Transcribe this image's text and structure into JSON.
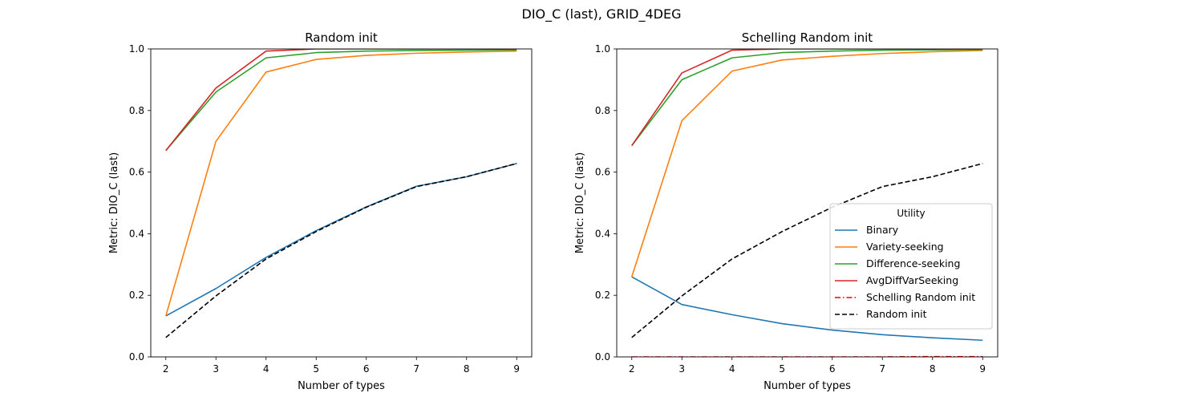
{
  "figure": {
    "suptitle": "DIO_C (last), GRID_4DEG"
  },
  "chart_data": [
    {
      "type": "line",
      "title": "Random init",
      "xlabel": "Number of types",
      "ylabel": "Metric: DIO_C (last)",
      "x": [
        2,
        3,
        4,
        5,
        6,
        7,
        8,
        9
      ],
      "xticks": [
        "2",
        "3",
        "4",
        "5",
        "6",
        "7",
        "8",
        "9"
      ],
      "yticks": [
        "0.0",
        "0.2",
        "0.4",
        "0.6",
        "0.8",
        "1.0"
      ],
      "xlim": [
        1.7,
        9.3
      ],
      "ylim": [
        0,
        1.0
      ],
      "grid": false,
      "legend": null,
      "series": [
        {
          "name": "Binary",
          "color": "#1f77b4",
          "style": "solid",
          "values": [
            0.133,
            0.222,
            0.323,
            0.41,
            0.487,
            0.554,
            0.585,
            0.628
          ]
        },
        {
          "name": "Variety-seeking",
          "color": "#ff7f0e",
          "style": "solid",
          "values": [
            0.133,
            0.7,
            0.925,
            0.966,
            0.979,
            0.986,
            0.99,
            0.993
          ]
        },
        {
          "name": "Difference-seeking",
          "color": "#2ca02c",
          "style": "solid",
          "values": [
            0.67,
            0.86,
            0.971,
            0.988,
            0.993,
            0.995,
            0.996,
            0.997
          ]
        },
        {
          "name": "AvgDiffVarSeeking",
          "color": "#d62728",
          "style": "solid",
          "values": [
            0.67,
            0.873,
            0.993,
            1.0,
            1.0,
            1.0,
            1.0,
            1.0
          ]
        },
        {
          "name": "Random init",
          "color": "#000000",
          "style": "dashed",
          "values": [
            0.063,
            0.198,
            0.318,
            0.407,
            0.486,
            0.553,
            0.585,
            0.628
          ]
        }
      ]
    },
    {
      "type": "line",
      "title": "Schelling Random init",
      "xlabel": "Number of types",
      "ylabel": "Metric: DIO_C (last)",
      "x": [
        2,
        3,
        4,
        5,
        6,
        7,
        8,
        9
      ],
      "xticks": [
        "2",
        "3",
        "4",
        "5",
        "6",
        "7",
        "8",
        "9"
      ],
      "yticks": [
        "0.0",
        "0.2",
        "0.4",
        "0.6",
        "0.8",
        "1.0"
      ],
      "xlim": [
        1.7,
        9.3
      ],
      "ylim": [
        0,
        1.0
      ],
      "grid": false,
      "legend": {
        "title": "Utility",
        "placement": "lower-right"
      },
      "series": [
        {
          "name": "Binary",
          "color": "#1f77b4",
          "style": "solid",
          "values": [
            0.26,
            0.17,
            0.137,
            0.108,
            0.087,
            0.072,
            0.062,
            0.054
          ]
        },
        {
          "name": "Variety-seeking",
          "color": "#ff7f0e",
          "style": "solid",
          "values": [
            0.26,
            0.767,
            0.928,
            0.964,
            0.976,
            0.985,
            0.991,
            0.995
          ]
        },
        {
          "name": "Difference-seeking",
          "color": "#2ca02c",
          "style": "solid",
          "values": [
            0.686,
            0.9,
            0.971,
            0.988,
            0.993,
            0.996,
            0.997,
            0.998
          ]
        },
        {
          "name": "AvgDiffVarSeeking",
          "color": "#d62728",
          "style": "solid",
          "values": [
            0.686,
            0.922,
            0.996,
            1.0,
            1.0,
            1.0,
            1.0,
            1.0
          ]
        },
        {
          "name": "Schelling Random init",
          "color": "#ff0000",
          "style": "dashdot",
          "values": [
            0.0,
            0.0,
            0.0,
            0.0,
            0.0,
            0.0,
            0.001,
            0.001
          ]
        },
        {
          "name": "Random init",
          "color": "#000000",
          "style": "dashed",
          "values": [
            0.063,
            0.198,
            0.318,
            0.407,
            0.486,
            0.553,
            0.585,
            0.628
          ]
        }
      ]
    }
  ]
}
